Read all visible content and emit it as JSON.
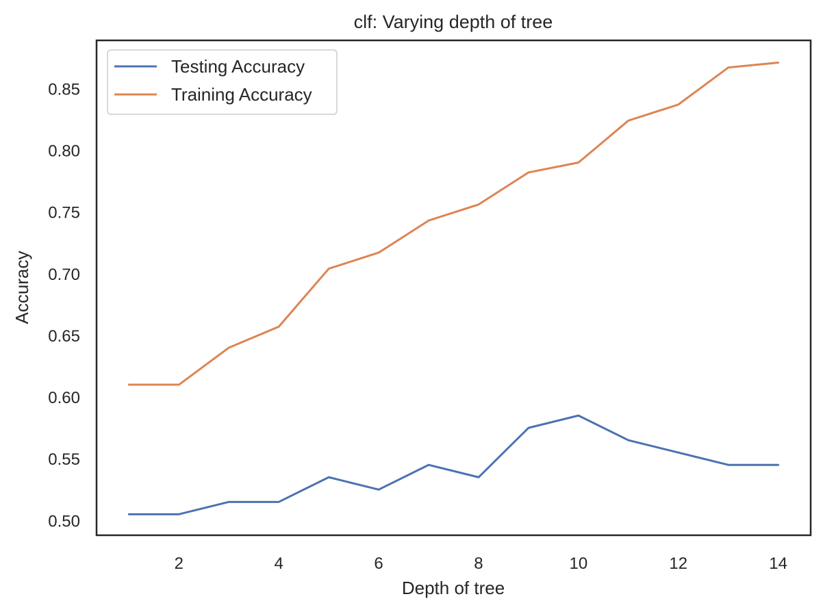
{
  "chart_data": {
    "type": "line",
    "title": "clf: Varying depth of tree",
    "xlabel": "Depth of tree",
    "ylabel": "Accuracy",
    "x": [
      1,
      2,
      3,
      4,
      5,
      6,
      7,
      8,
      9,
      10,
      11,
      12,
      13,
      14
    ],
    "xlim": [
      0.35,
      14.65
    ],
    "ylim": [
      0.488,
      0.889
    ],
    "xticks": [
      2,
      4,
      6,
      8,
      10,
      12,
      14
    ],
    "yticks": [
      0.5,
      0.55,
      0.6,
      0.65,
      0.7,
      0.75,
      0.8,
      0.85
    ],
    "xtick_labels": [
      "2",
      "4",
      "6",
      "8",
      "10",
      "12",
      "14"
    ],
    "ytick_labels": [
      "0.50",
      "0.55",
      "0.60",
      "0.65",
      "0.70",
      "0.75",
      "0.80",
      "0.85"
    ],
    "grid": false,
    "legend_position": "top-left",
    "series": [
      {
        "name": "Testing Accuracy",
        "color": "#4c72b0",
        "values": [
          0.505,
          0.505,
          0.515,
          0.515,
          0.535,
          0.525,
          0.545,
          0.535,
          0.575,
          0.585,
          0.565,
          0.555,
          0.545,
          0.545
        ]
      },
      {
        "name": "Training Accuracy",
        "color": "#dd8452",
        "values": [
          0.61,
          0.61,
          0.64,
          0.657,
          0.704,
          0.717,
          0.743,
          0.756,
          0.782,
          0.79,
          0.824,
          0.837,
          0.867,
          0.871
        ]
      }
    ]
  }
}
